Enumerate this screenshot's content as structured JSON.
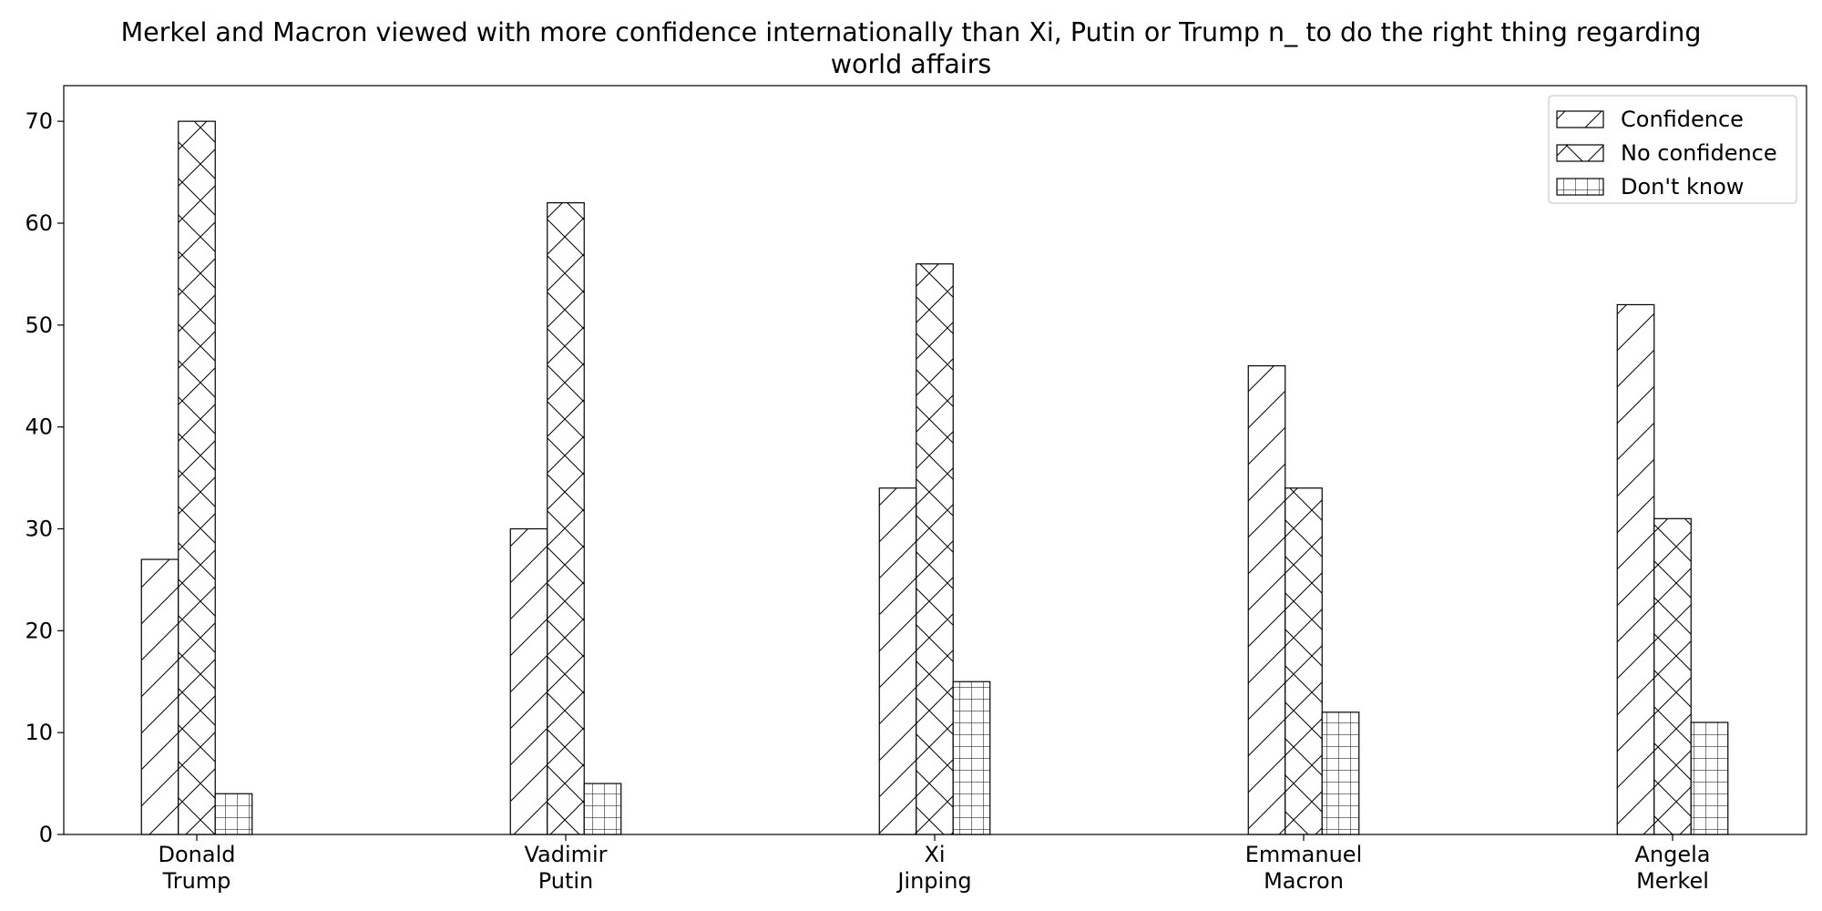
{
  "chart_data": {
    "type": "bar",
    "title_lines": [
      "Merkel and Macron viewed with more confidence internationally than Xi, Putin or Trump n_ to do the right thing regarding",
      "world affairs"
    ],
    "xlabel": "",
    "ylabel": "",
    "categories": [
      [
        "Donald",
        "Trump"
      ],
      [
        "Vadimir",
        "Putin"
      ],
      [
        "Xi",
        "Jinping"
      ],
      [
        "Emmanuel",
        "Macron"
      ],
      [
        "Angela",
        "Merkel"
      ]
    ],
    "series": [
      {
        "name": "Confidence",
        "values": [
          27,
          30,
          34,
          46,
          52
        ],
        "hatch": "diagonal"
      },
      {
        "name": "No confidence",
        "values": [
          70,
          62,
          56,
          34,
          31
        ],
        "hatch": "crosshatch"
      },
      {
        "name": "Don't know",
        "values": [
          4,
          5,
          15,
          12,
          11
        ],
        "hatch": "grid"
      }
    ],
    "ylim": [
      0,
      73.5
    ],
    "yticks": [
      0,
      10,
      20,
      30,
      40,
      50,
      60,
      70
    ],
    "grid": false,
    "legend_position": "top-right",
    "colors": {
      "bar_fill": "#ffffff",
      "bar_edge": "#000000",
      "axis": "#000000"
    }
  }
}
